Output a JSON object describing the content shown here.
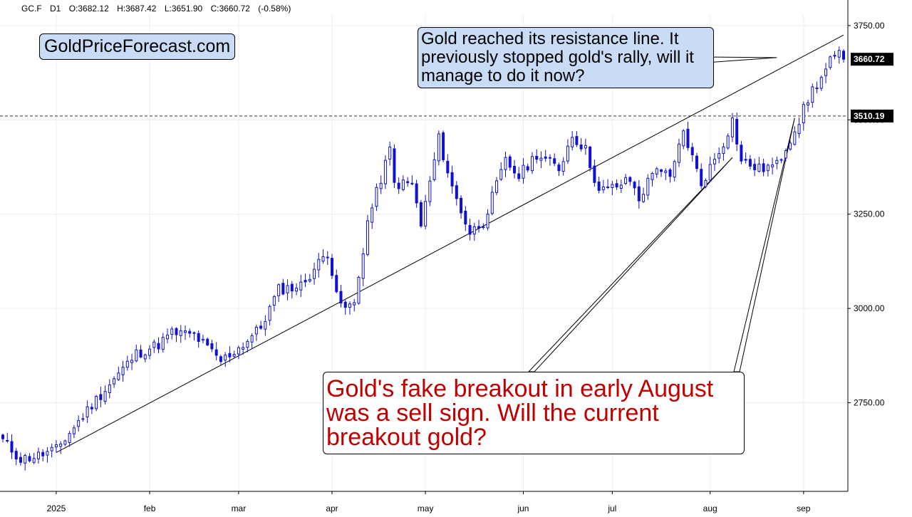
{
  "header": {
    "symbol": "GC.F",
    "timeframe": "D1",
    "open": "O:3682.12",
    "high": "H:3687.42",
    "low": "L:3651.90",
    "close": "C:3660.72",
    "change": "(-0.58%)"
  },
  "brand": "GoldPriceForecast.com",
  "annotations": {
    "resistance_note": "Gold reached its resistance line. It previously stopped gold's rally, will it manage to do it now?",
    "breakout_note": "Gold's fake breakout in early August was a sell sign. Will the current breakout gold?"
  },
  "colors": {
    "candle": "#1010d0",
    "grid": "#ececec",
    "note_fill": "#c9dcf6",
    "note_text_red": "#c00000"
  },
  "chart_data": {
    "type": "candlestick",
    "y_axis": {
      "ticks": [
        "3750.00",
        "3500.00",
        "3250.00",
        "3000.00",
        "2750.00"
      ],
      "tick_values": [
        3750,
        3500,
        3250,
        3000,
        2750
      ],
      "ylim": [
        2515,
        3780
      ],
      "position": "right",
      "price_labels": [
        {
          "label": "3660.72",
          "value": 3660.72
        },
        {
          "label": "3510.19",
          "value": 3510.19
        }
      ]
    },
    "x_axis": {
      "labels": [
        "2025",
        "feb",
        "mar",
        "apr",
        "may",
        "jun",
        "jul",
        "aug",
        "sep"
      ],
      "label_index": [
        12,
        33,
        53,
        74,
        95,
        117,
        137,
        159,
        180
      ],
      "bar_count": 190
    },
    "grid": true,
    "horizontal_level": 3510.19,
    "trendlines": [
      {
        "from": [
          12,
          2618
        ],
        "to": [
          189,
          3725
        ]
      }
    ],
    "callout_targets": {
      "resistance_note": [
        [
          174,
          3665
        ]
      ],
      "breakout_note": [
        [
          164,
          3400
        ],
        [
          178,
          3505
        ]
      ]
    },
    "anchors": [
      [
        0,
        2650
      ],
      [
        4,
        2600
      ],
      [
        8,
        2610
      ],
      [
        12,
        2625
      ],
      [
        20,
        2745
      ],
      [
        30,
        2880
      ],
      [
        35,
        2905
      ],
      [
        38,
        2935
      ],
      [
        43,
        2930
      ],
      [
        49,
        2860
      ],
      [
        54,
        2905
      ],
      [
        58,
        2950
      ],
      [
        62,
        3050
      ],
      [
        67,
        3060
      ],
      [
        73,
        3150
      ],
      [
        76,
        3000
      ],
      [
        79,
        3010
      ],
      [
        82,
        3230
      ],
      [
        87,
        3420
      ],
      [
        88,
        3330
      ],
      [
        92,
        3330
      ],
      [
        94,
        3220
      ],
      [
        98,
        3450
      ],
      [
        101,
        3320
      ],
      [
        105,
        3200
      ],
      [
        108,
        3230
      ],
      [
        113,
        3390
      ],
      [
        116,
        3350
      ],
      [
        120,
        3410
      ],
      [
        125,
        3370
      ],
      [
        128,
        3460
      ],
      [
        131,
        3420
      ],
      [
        134,
        3310
      ],
      [
        137,
        3320
      ],
      [
        141,
        3340
      ],
      [
        143,
        3290
      ],
      [
        147,
        3380
      ],
      [
        150,
        3340
      ],
      [
        153,
        3470
      ],
      [
        157,
        3330
      ],
      [
        162,
        3440
      ],
      [
        164,
        3500
      ],
      [
        166,
        3390
      ],
      [
        170,
        3370
      ],
      [
        174,
        3380
      ],
      [
        179,
        3500
      ],
      [
        182,
        3580
      ],
      [
        184,
        3610
      ],
      [
        186,
        3655
      ],
      [
        188,
        3670
      ],
      [
        189,
        3661
      ]
    ],
    "last_candle": {
      "open": 3682.12,
      "high": 3687.42,
      "low": 3651.9,
      "close": 3660.72
    }
  }
}
